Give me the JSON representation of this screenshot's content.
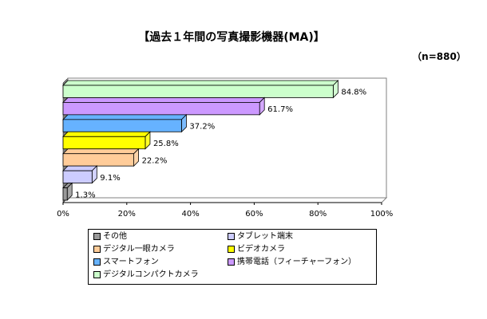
{
  "title": "【過去１年間の写真撮影機器(MA)】",
  "sample_size": "（n=880）",
  "chart_data": {
    "type": "bar",
    "orientation": "horizontal",
    "categories": [
      "デジタルコンパクトカメラ",
      "携帯電話（フィーチャーフォン）",
      "スマートフォン",
      "ビデオカメラ",
      "デジタル一眼カメラ",
      "タブレット端末",
      "その他"
    ],
    "values": [
      84.8,
      61.7,
      37.2,
      25.8,
      22.2,
      9.1,
      1.3
    ],
    "value_labels": [
      "84.8%",
      "61.7%",
      "37.2%",
      "25.8%",
      "22.2%",
      "9.1%",
      "1.3%"
    ],
    "colors": [
      "#ccffcc",
      "#cc99ff",
      "#66b2ff",
      "#ffff00",
      "#ffcc99",
      "#ccccff",
      "#999999"
    ],
    "xlim": [
      0,
      100
    ],
    "x_ticks": [
      "0%",
      "20%",
      "40%",
      "60%",
      "80%",
      "100%"
    ],
    "x_tick_values": [
      0,
      20,
      40,
      60,
      80,
      100
    ],
    "grid": false,
    "legend_position": "bottom",
    "legend": [
      {
        "label": "その他",
        "color": "#999999"
      },
      {
        "label": "タブレット端末",
        "color": "#ccccff"
      },
      {
        "label": "デジタル一眼カメラ",
        "color": "#ffcc99"
      },
      {
        "label": "ビデオカメラ",
        "color": "#ffff00"
      },
      {
        "label": "スマートフォン",
        "color": "#66b2ff"
      },
      {
        "label": "携帯電話（フィーチャーフォン）",
        "color": "#cc99ff"
      },
      {
        "label": "デジタルコンパクトカメラ",
        "color": "#ccffcc"
      }
    ]
  }
}
